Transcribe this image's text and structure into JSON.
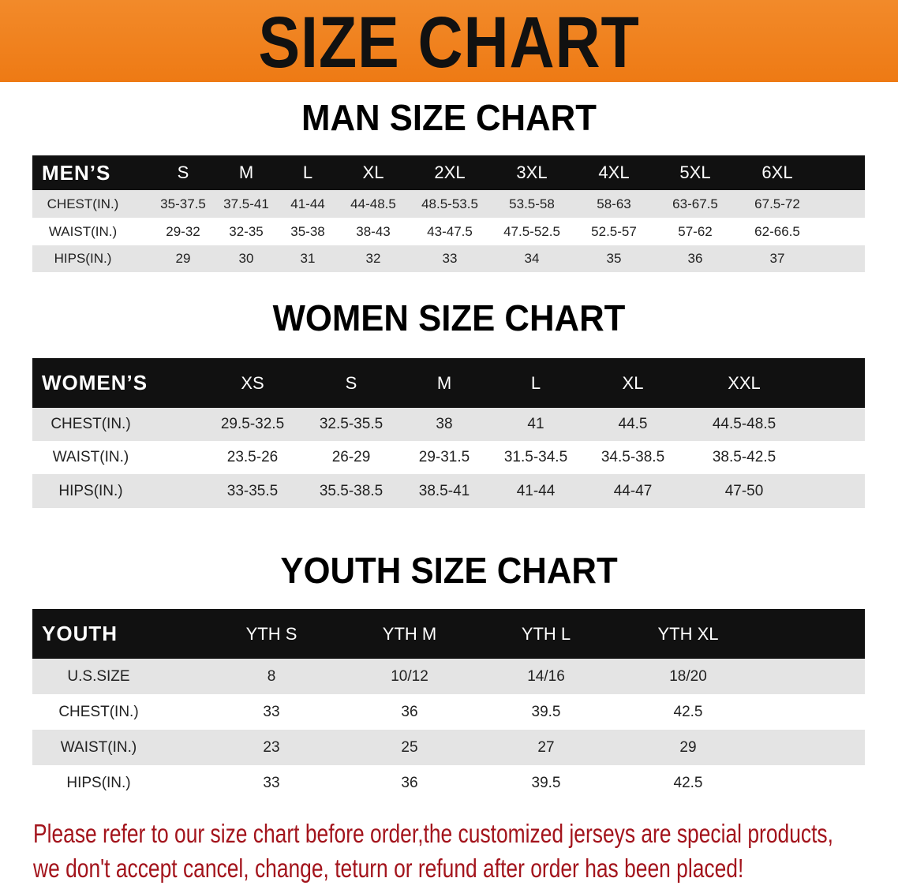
{
  "banner": {
    "title": "SIZE CHART",
    "color": "#ef801c"
  },
  "men": {
    "title": "MAN SIZE CHART",
    "header": [
      "MEN’S",
      "S",
      "M",
      "L",
      "XL",
      "2XL",
      "3XL",
      "4XL",
      "5XL",
      "6XL"
    ],
    "rows": [
      [
        "CHEST(IN.)",
        "35-37.5",
        "37.5-41",
        "41-44",
        "44-48.5",
        "48.5-53.5",
        "53.5-58",
        "58-63",
        "63-67.5",
        "67.5-72"
      ],
      [
        "WAIST(IN.)",
        "29-32",
        "32-35",
        "35-38",
        "38-43",
        "43-47.5",
        "47.5-52.5",
        "52.5-57",
        "57-62",
        "62-66.5"
      ],
      [
        "HIPS(IN.)",
        "29",
        "30",
        "31",
        "32",
        "33",
        "34",
        "35",
        "36",
        "37"
      ]
    ]
  },
  "women": {
    "title": "WOMEN SIZE CHART",
    "header": [
      "WOMEN’S",
      "XS",
      "S",
      "M",
      "L",
      "XL",
      "XXL"
    ],
    "rows": [
      [
        "CHEST(IN.)",
        "29.5-32.5",
        "32.5-35.5",
        "38",
        "41",
        "44.5",
        "44.5-48.5"
      ],
      [
        "WAIST(IN.)",
        "23.5-26",
        "26-29",
        "29-31.5",
        "31.5-34.5",
        "34.5-38.5",
        "38.5-42.5"
      ],
      [
        "HIPS(IN.)",
        "33-35.5",
        "35.5-38.5",
        "38.5-41",
        "41-44",
        "44-47",
        "47-50"
      ]
    ]
  },
  "youth": {
    "title": "YOUTH SIZE CHART",
    "header": [
      "YOUTH",
      "YTH S",
      "YTH M",
      "YTH L",
      "YTH XL"
    ],
    "rows": [
      [
        "U.S.SIZE",
        "8",
        "10/12",
        "14/16",
        "18/20"
      ],
      [
        "CHEST(IN.)",
        "33",
        "36",
        "39.5",
        "42.5"
      ],
      [
        "WAIST(IN.)",
        "23",
        "25",
        "27",
        "29"
      ],
      [
        "HIPS(IN.)",
        "33",
        "36",
        "39.5",
        "42.5"
      ]
    ]
  },
  "notice": {
    "line1": "Please refer to our size chart before order,the customized jerseys are special products,",
    "line2": "we don't accept cancel, change, teturn or refund after order has been placed!",
    "color": "#a3141c"
  }
}
